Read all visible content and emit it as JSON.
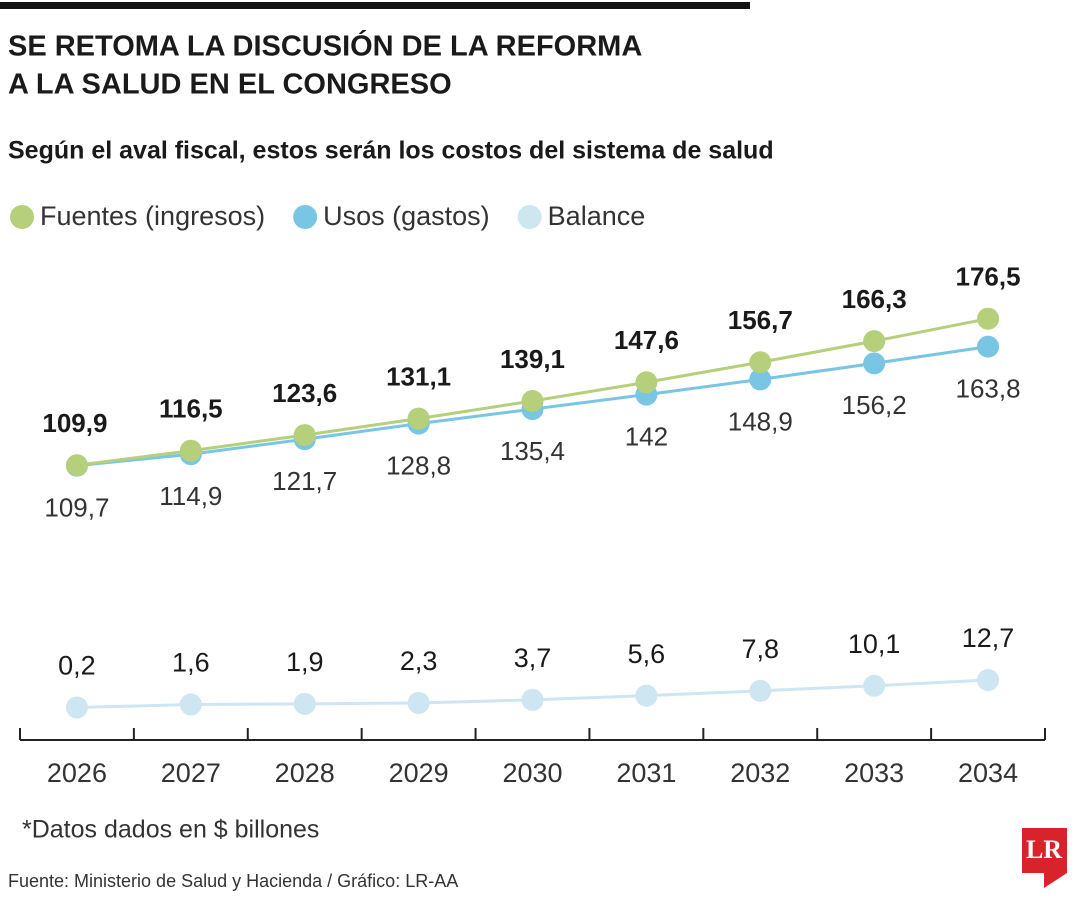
{
  "chart_data": {
    "type": "line",
    "title": [
      "SE RETOMA LA DISCUSIÓN DE LA REFORMA",
      "A LA SALUD EN EL CONGRESO"
    ],
    "subtitle": "Según el aval fiscal, estos serán los costos del sistema de salud",
    "categories": [
      "2026",
      "2027",
      "2028",
      "2029",
      "2030",
      "2031",
      "2032",
      "2033",
      "2034"
    ],
    "series": [
      {
        "name": "Fuentes (ingresos)",
        "color": "#b5cf7a",
        "values": [
          109.9,
          116.5,
          123.6,
          131.1,
          139.1,
          147.6,
          156.7,
          166.3,
          176.5
        ],
        "value_labels": [
          "109,9",
          "116,5",
          "123,6",
          "131,1",
          "139,1",
          "147,6",
          "156,7",
          "166,3",
          "176,5"
        ]
      },
      {
        "name": "Usos (gastos)",
        "color": "#78c6e4",
        "values": [
          109.7,
          114.9,
          121.7,
          128.8,
          135.4,
          142,
          148.9,
          156.2,
          163.8
        ],
        "value_labels": [
          "109,7",
          "114,9",
          "121,7",
          "128,8",
          "135,4",
          "142",
          "148,9",
          "156,2",
          "163,8"
        ]
      },
      {
        "name": "Balance",
        "color": "#cde6f2",
        "axis": "y2",
        "values": [
          0.2,
          1.6,
          1.9,
          2.3,
          3.7,
          5.6,
          7.8,
          10.1,
          12.7
        ],
        "value_labels": [
          "0,2",
          "1,6",
          "1,9",
          "2,3",
          "3,7",
          "5,6",
          "7,8",
          "10,1",
          "12,7"
        ]
      }
    ],
    "ylim": [
      100,
      185
    ],
    "y2lim": [
      0,
      15
    ],
    "legend": "top-left",
    "note": "*Datos dados en $ billones",
    "source": "Fuente: Ministerio de Salud y Hacienda / Gráfico: LR-AA"
  },
  "logo": "LR"
}
